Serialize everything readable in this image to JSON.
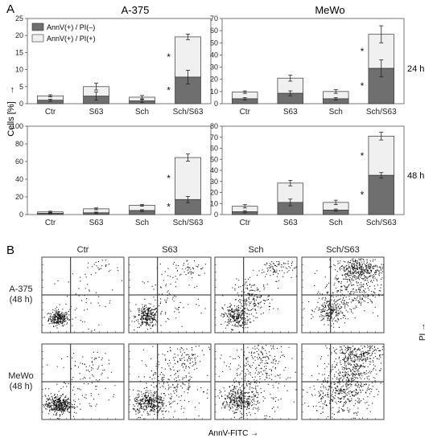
{
  "panel_a_label": "A",
  "panel_b_label": "B",
  "y_axis_label": "Cells [%]",
  "y_axis_arrow": "→",
  "cell_lines": [
    "A-375",
    "MeWo"
  ],
  "time_labels": [
    "24 h",
    "48 h"
  ],
  "legend": [
    "AnnV(+) / PI(–)",
    "AnnV(+) / PI(+)"
  ],
  "significance_marker": "*",
  "colors": {
    "early": "#6f6f6f",
    "late": "#f0f0f0",
    "outline": "#333333"
  },
  "chart_data": [
    {
      "type": "bar",
      "stacked": true,
      "cell_line": "A-375",
      "time": "24 h",
      "categories": [
        "Ctr",
        "S63",
        "Sch",
        "Sch/S63"
      ],
      "series": [
        {
          "name": "AnnV(+) / PI(–)",
          "values": [
            1.0,
            2.2,
            0.8,
            7.8
          ],
          "err": [
            0.3,
            1.2,
            0.4,
            2.0
          ]
        },
        {
          "name": "AnnV(+) / PI(+)",
          "values": [
            1.3,
            2.8,
            1.1,
            11.8
          ],
          "err": [
            0.3,
            1.0,
            0.5,
            0.8
          ]
        }
      ],
      "significant": [
        false,
        false,
        false,
        true
      ],
      "yticks": [
        0,
        5,
        10,
        15,
        20,
        25
      ],
      "ylim": [
        0,
        25
      ],
      "legend_position": "top-left"
    },
    {
      "type": "bar",
      "stacked": true,
      "cell_line": "MeWo",
      "time": "24 h",
      "categories": [
        "Ctr",
        "S63",
        "Sch",
        "Sch/S63"
      ],
      "series": [
        {
          "name": "AnnV(+) / PI(–)",
          "values": [
            4.0,
            8.5,
            4.0,
            29.0
          ],
          "err": [
            1.0,
            2.0,
            1.0,
            7.0
          ]
        },
        {
          "name": "AnnV(+) / PI(+)",
          "values": [
            5.5,
            12.5,
            6.0,
            28.0
          ],
          "err": [
            1.0,
            2.5,
            1.5,
            7.0
          ]
        }
      ],
      "significant": [
        false,
        false,
        false,
        true
      ],
      "yticks": [
        0,
        10,
        20,
        30,
        40,
        50,
        60,
        70
      ],
      "ylim": [
        0,
        70
      ]
    },
    {
      "type": "bar",
      "stacked": true,
      "cell_line": "A-375",
      "time": "48 h",
      "categories": [
        "Ctr",
        "S63",
        "Sch",
        "Sch/S63"
      ],
      "series": [
        {
          "name": "AnnV(+) / PI(–)",
          "values": [
            1.5,
            2.0,
            4.5,
            17.0
          ],
          "err": [
            0.5,
            0.8,
            1.0,
            3.5
          ]
        },
        {
          "name": "AnnV(+) / PI(+)",
          "values": [
            1.5,
            4.5,
            6.0,
            47.5
          ],
          "err": [
            0.8,
            1.0,
            1.0,
            4.0
          ]
        }
      ],
      "significant": [
        false,
        false,
        false,
        true
      ],
      "yticks": [
        0,
        20,
        40,
        60,
        80,
        100
      ],
      "ylim": [
        0,
        100
      ]
    },
    {
      "type": "bar",
      "stacked": true,
      "cell_line": "MeWo",
      "time": "48 h",
      "categories": [
        "Ctr",
        "S63",
        "Sch",
        "Sch/S63"
      ],
      "series": [
        {
          "name": "AnnV(+) / PI(–)",
          "values": [
            2.5,
            11.0,
            4.0,
            35.5
          ],
          "err": [
            1.0,
            3.0,
            1.0,
            2.5
          ]
        },
        {
          "name": "AnnV(+) / PI(+)",
          "values": [
            5.0,
            17.5,
            7.0,
            35.5
          ],
          "err": [
            1.5,
            2.5,
            2.0,
            3.5
          ]
        }
      ],
      "significant": [
        false,
        false,
        false,
        true
      ],
      "yticks": [
        0,
        10,
        20,
        30,
        40,
        50,
        60,
        70,
        80
      ],
      "ylim": [
        0,
        80
      ]
    }
  ],
  "flow": {
    "type": "scatter",
    "columns": [
      "Ctr",
      "S63",
      "Sch",
      "Sch/S63"
    ],
    "rows": [
      "A-375\n(48 h)",
      "MeWo\n(48 h)"
    ],
    "x_label": "AnnV-FITC →",
    "y_label": "PI →",
    "gate_x": 0.35,
    "gate_y": 0.5
  }
}
